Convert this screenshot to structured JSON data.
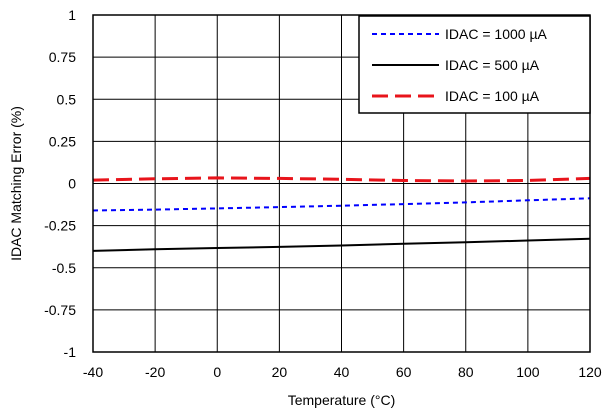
{
  "chart_data": {
    "type": "line",
    "xlabel": "Temperature (°C)",
    "ylabel": "IDAC Matching Error (%)",
    "xlim": [
      -40,
      120
    ],
    "ylim": [
      -1,
      1
    ],
    "xticks": [
      -40,
      -20,
      0,
      20,
      40,
      60,
      80,
      100,
      120
    ],
    "yticks": [
      1,
      0.75,
      0.5,
      0.25,
      0,
      -0.25,
      -0.5,
      -0.75,
      -1
    ],
    "xtick_labels": [
      "-40",
      "-20",
      "0",
      "20",
      "40",
      "60",
      "80",
      "100",
      "120"
    ],
    "ytick_labels": [
      "1",
      "0.75",
      "0.5",
      "0.25",
      "0",
      "-0.25",
      "-0.5",
      "-0.75",
      "-1"
    ],
    "grid": true,
    "legend_position": "top-right",
    "series": [
      {
        "name": "IDAC = 1000 µA",
        "color": "#0000ff",
        "style": "dotted",
        "x": [
          -40,
          -20,
          0,
          20,
          40,
          60,
          80,
          100,
          120
        ],
        "y": [
          -0.16,
          -0.155,
          -0.148,
          -0.14,
          -0.132,
          -0.122,
          -0.112,
          -0.1,
          -0.088
        ]
      },
      {
        "name": "IDAC = 500 µA",
        "color": "#000000",
        "style": "solid",
        "x": [
          -40,
          -20,
          0,
          20,
          40,
          60,
          80,
          100,
          120
        ],
        "y": [
          -0.4,
          -0.39,
          -0.383,
          -0.376,
          -0.368,
          -0.358,
          -0.349,
          -0.338,
          -0.328
        ]
      },
      {
        "name": "IDAC = 100 µA",
        "color": "#e8141b",
        "style": "dashed",
        "x": [
          -40,
          -20,
          0,
          20,
          40,
          60,
          80,
          100,
          120
        ],
        "y": [
          0.02,
          0.028,
          0.033,
          0.03,
          0.025,
          0.018,
          0.015,
          0.018,
          0.03
        ]
      }
    ]
  }
}
